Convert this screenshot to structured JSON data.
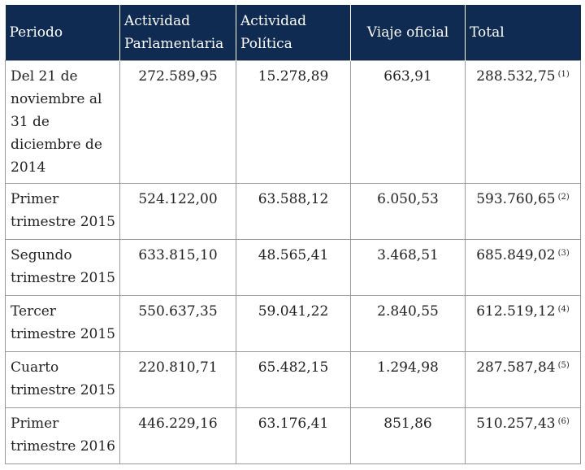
{
  "headers": [
    "Periodo",
    "Actividad Parlamentaria",
    "Actividad Política",
    "Viaje oficial",
    "Total"
  ],
  "rows": [
    {
      "periodo": "Del 21 de noviembre al 31 de diciembre de 2014",
      "parlamentaria": "272.589,95",
      "politica": "15.278,89",
      "viaje": "663,91",
      "total": "288.532,75",
      "nota": "(1)"
    },
    {
      "periodo": "Primer trimestre 2015",
      "parlamentaria": "524.122,00",
      "politica": "63.588,12",
      "viaje": "6.050,53",
      "total": "593.760,65",
      "nota": "(2)"
    },
    {
      "periodo": "Segundo trimestre 2015",
      "parlamentaria": "633.815,10",
      "politica": "48.565,41",
      "viaje": "3.468,51",
      "total": "685.849,02",
      "nota": "(3)"
    },
    {
      "periodo": "Tercer trimestre 2015",
      "parlamentaria": "550.637,35",
      "politica": "59.041,22",
      "viaje": "2.840,55",
      "total": "612.519,12",
      "nota": "(4)"
    },
    {
      "periodo": "Cuarto trimestre 2015",
      "parlamentaria": "220.810,71",
      "politica": "65.482,15",
      "viaje": "1.294,98",
      "total": "287.587,84",
      "nota": "(5)"
    },
    {
      "periodo": "Primer trimestre 2016",
      "parlamentaria": "446.229,16",
      "politica": "63.176,41",
      "viaje": "851,86",
      "total": "510.257,43",
      "nota": "(6)"
    }
  ],
  "colors": {
    "header_bg": "#0f2b52",
    "header_text": "#ffffff",
    "border": "#9a9a9a",
    "text": "#222222"
  }
}
